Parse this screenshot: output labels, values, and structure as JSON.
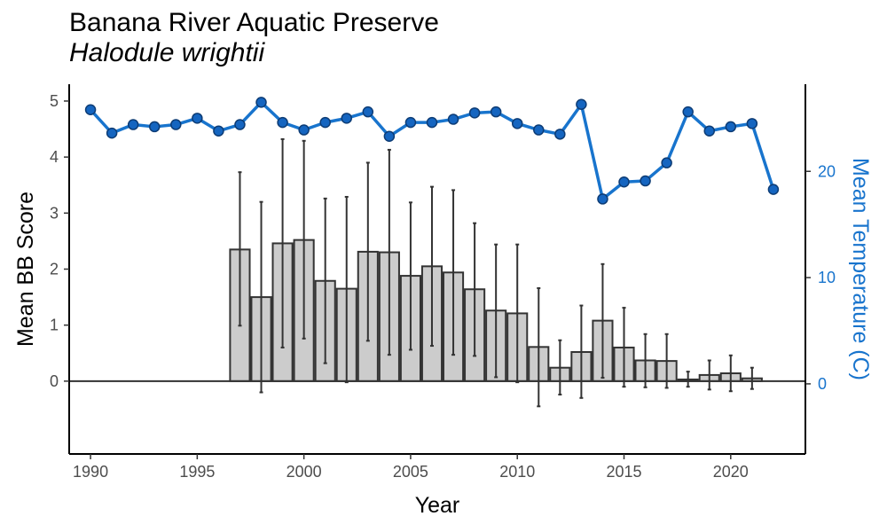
{
  "chart_data": {
    "type": "bar+line",
    "title": "Banana River Aquatic Preserve",
    "subtitle": "Halodule wrightii",
    "xlabel": "Year",
    "ylabel": "Mean BB Score",
    "y2label": "Mean Temperature (C)",
    "xlim": [
      1989,
      2023.5
    ],
    "ylim": [
      -1.3,
      5.3
    ],
    "y2lim": [
      -6.6,
      28.2
    ],
    "x_ticks": [
      1990,
      1995,
      2000,
      2005,
      2010,
      2015,
      2020
    ],
    "y_ticks": [
      0,
      1,
      2,
      3,
      4,
      5
    ],
    "y2_ticks": [
      0,
      10,
      20
    ],
    "bar_fill": "#cccccc",
    "bar_stroke": "#333333",
    "line_color": "#1874cd",
    "point_fill": "#1565c0",
    "bars": {
      "series": "Mean BB Score",
      "x": [
        1997,
        1998,
        1999,
        2000,
        2001,
        2002,
        2003,
        2004,
        2005,
        2006,
        2007,
        2008,
        2009,
        2010,
        2011,
        2012,
        2013,
        2014,
        2015,
        2016,
        2017,
        2018,
        2019,
        2020,
        2021
      ],
      "values": [
        2.35,
        1.5,
        2.46,
        2.52,
        1.79,
        1.65,
        2.31,
        2.3,
        1.88,
        2.05,
        1.94,
        1.64,
        1.26,
        1.21,
        0.61,
        0.24,
        0.52,
        1.08,
        0.6,
        0.37,
        0.36,
        0.03,
        0.11,
        0.14,
        0.05
      ],
      "err_low": [
        0.99,
        -0.2,
        0.6,
        0.76,
        0.32,
        -0.02,
        0.72,
        0.47,
        0.56,
        0.63,
        0.47,
        0.45,
        0.07,
        -0.02,
        -0.45,
        -0.24,
        -0.3,
        0.06,
        -0.1,
        -0.11,
        -0.12,
        -0.1,
        -0.15,
        -0.18,
        -0.14
      ],
      "err_high": [
        3.73,
        3.2,
        4.32,
        4.29,
        3.26,
        3.29,
        3.9,
        4.13,
        3.19,
        3.47,
        3.41,
        2.82,
        2.44,
        2.44,
        1.66,
        0.73,
        1.35,
        2.09,
        1.31,
        0.84,
        0.84,
        0.17,
        0.37,
        0.46,
        0.24
      ]
    },
    "line": {
      "series": "Mean Temperature (C)",
      "x": [
        1990,
        1991,
        1992,
        1993,
        1994,
        1995,
        1996,
        1997,
        1998,
        1999,
        2000,
        2001,
        2002,
        2003,
        2004,
        2005,
        2006,
        2007,
        2008,
        2009,
        2010,
        2011,
        2012,
        2013,
        2014,
        2015,
        2016,
        2017,
        2018,
        2019,
        2020,
        2021,
        2022
      ],
      "values": [
        25.8,
        23.6,
        24.4,
        24.2,
        24.4,
        25.0,
        23.8,
        24.4,
        26.5,
        24.6,
        23.9,
        24.6,
        25.0,
        25.6,
        23.3,
        24.6,
        24.6,
        24.9,
        25.5,
        25.6,
        24.5,
        23.9,
        23.5,
        26.3,
        17.4,
        19.0,
        19.1,
        20.8,
        25.6,
        23.8,
        24.2,
        24.5,
        18.3
      ]
    }
  }
}
